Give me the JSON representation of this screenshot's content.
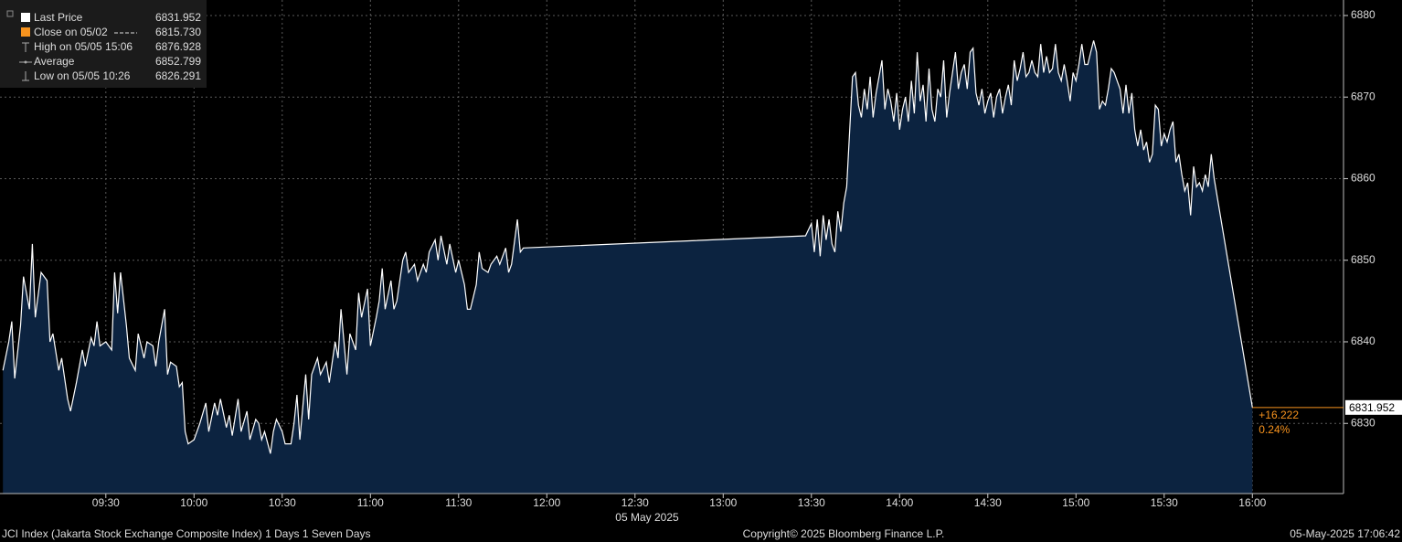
{
  "chart_data": {
    "type": "area",
    "xlabel": "05 May 2025",
    "xlim": [
      "08:54",
      "16:31"
    ],
    "xticks": [
      "09:30",
      "10:00",
      "10:30",
      "11:00",
      "11:30",
      "12:00",
      "12:30",
      "13:00",
      "13:30",
      "14:00",
      "14:30",
      "15:00",
      "15:30",
      "16:00"
    ],
    "ylim": [
      6821.4,
      6881.9
    ],
    "yticks": [
      6830,
      6840,
      6850,
      6860,
      6870,
      6880
    ],
    "grid": true,
    "x": [
      "08:55",
      "08:57",
      "08:58",
      "08:59",
      "09:01",
      "09:02",
      "09:04",
      "09:05",
      "09:06",
      "09:08",
      "09:10",
      "09:11",
      "09:12",
      "09:14",
      "09:15",
      "09:17",
      "09:18",
      "09:20",
      "09:22",
      "09:23",
      "09:25",
      "09:26",
      "09:27",
      "09:28",
      "09:30",
      "09:32",
      "09:33",
      "09:34",
      "09:35",
      "09:37",
      "09:38",
      "09:40",
      "09:41",
      "09:43",
      "09:44",
      "09:46",
      "09:47",
      "09:48",
      "09:50",
      "09:51",
      "09:52",
      "09:54",
      "09:55",
      "09:56",
      "09:57",
      "09:58",
      "10:00",
      "10:02",
      "10:04",
      "10:05",
      "10:07",
      "10:08",
      "10:09",
      "10:11",
      "10:12",
      "10:13",
      "10:15",
      "10:16",
      "10:18",
      "10:19",
      "10:21",
      "10:22",
      "10:23",
      "10:24",
      "10:26",
      "10:27",
      "10:28",
      "10:30",
      "10:31",
      "10:33",
      "10:34",
      "10:35",
      "10:36",
      "10:38",
      "10:39",
      "10:40",
      "10:42",
      "10:43",
      "10:45",
      "10:46",
      "10:48",
      "10:49",
      "10:50",
      "10:52",
      "10:53",
      "10:55",
      "10:56",
      "10:57",
      "10:59",
      "11:00",
      "11:02",
      "11:03",
      "11:04",
      "11:05",
      "11:07",
      "11:08",
      "11:09",
      "11:11",
      "11:12",
      "11:13",
      "11:15",
      "11:16",
      "11:18",
      "11:19",
      "11:20",
      "11:22",
      "11:23",
      "11:24",
      "11:26",
      "11:27",
      "11:29",
      "11:30",
      "11:32",
      "11:33",
      "11:34",
      "11:36",
      "11:37",
      "11:38",
      "11:40",
      "11:41",
      "11:43",
      "11:44",
      "11:46",
      "11:47",
      "11:48",
      "11:50",
      "11:51",
      "11:52",
      "13:28",
      "13:30",
      "13:31",
      "13:32",
      "13:33",
      "13:34",
      "13:35",
      "13:36",
      "13:37",
      "13:38",
      "13:39",
      "13:40",
      "13:41",
      "13:42",
      "13:44",
      "13:45",
      "13:46",
      "13:47",
      "13:48",
      "13:49",
      "13:50",
      "13:51",
      "13:52",
      "13:54",
      "13:55",
      "13:56",
      "13:57",
      "13:58",
      "13:59",
      "14:00",
      "14:01",
      "14:02",
      "14:03",
      "14:04",
      "14:05",
      "14:06",
      "14:07",
      "14:08",
      "14:09",
      "14:10",
      "14:11",
      "14:12",
      "14:13",
      "14:14",
      "14:15",
      "14:16",
      "14:17",
      "14:18",
      "14:19",
      "14:20",
      "14:21",
      "14:22",
      "14:23",
      "14:24",
      "14:25",
      "14:26",
      "14:27",
      "14:28",
      "14:29",
      "14:30",
      "14:31",
      "14:32",
      "14:33",
      "14:34",
      "14:35",
      "14:36",
      "14:37",
      "14:38",
      "14:39",
      "14:40",
      "14:41",
      "14:42",
      "14:43",
      "14:44",
      "14:45",
      "14:46",
      "14:47",
      "14:48",
      "14:49",
      "14:50",
      "14:51",
      "14:52",
      "14:53",
      "14:54",
      "14:55",
      "14:56",
      "14:57",
      "14:58",
      "14:59",
      "15:00",
      "15:01",
      "15:02",
      "15:03",
      "15:04",
      "15:05",
      "15:06",
      "15:07",
      "15:08",
      "15:09",
      "15:10",
      "15:11",
      "15:12",
      "15:13",
      "15:14",
      "15:15",
      "15:16",
      "15:17",
      "15:18",
      "15:19",
      "15:20",
      "15:21",
      "15:22",
      "15:23",
      "15:24",
      "15:25",
      "15:26",
      "15:27",
      "15:28",
      "15:29",
      "15:30",
      "15:31",
      "15:32",
      "15:33",
      "15:34",
      "15:35",
      "15:36",
      "15:37",
      "15:38",
      "15:39",
      "15:40",
      "15:41",
      "15:42",
      "15:43",
      "15:44",
      "15:45",
      "15:46",
      "15:47",
      "16:00"
    ],
    "series": [
      {
        "name": "Last Price",
        "color": "#ffffff",
        "fill": "#0c2340",
        "values": [
          6836.5,
          6840,
          6842.5,
          6835.5,
          6842,
          6848,
          6844,
          6852,
          6843,
          6848.5,
          6847.5,
          6840,
          6841,
          6836.5,
          6838,
          6833,
          6831.5,
          6835,
          6839,
          6837,
          6840.5,
          6839.5,
          6842.5,
          6839.5,
          6840,
          6839,
          6848.5,
          6843.5,
          6848.5,
          6842,
          6838,
          6836.5,
          6841,
          6838,
          6840,
          6839.5,
          6837,
          6840,
          6844,
          6836,
          6837.5,
          6837,
          6834.5,
          6835,
          6829,
          6827.5,
          6828,
          6830,
          6832.5,
          6829,
          6832.5,
          6831,
          6833,
          6829.5,
          6831,
          6828.5,
          6833,
          6829,
          6831.5,
          6828,
          6830.5,
          6830,
          6828,
          6829,
          6826.3,
          6829,
          6830.5,
          6829,
          6827.5,
          6827.5,
          6830,
          6833.5,
          6828,
          6836,
          6830.5,
          6836,
          6838,
          6836,
          6837.5,
          6835,
          6840,
          6838,
          6844,
          6836,
          6841,
          6839,
          6846,
          6843,
          6846.5,
          6839.5,
          6843,
          6845,
          6849,
          6844,
          6847.5,
          6844,
          6845,
          6850,
          6851,
          6848.5,
          6849.5,
          6847.5,
          6849.5,
          6848.5,
          6851,
          6852.5,
          6850,
          6853,
          6849.5,
          6852,
          6848.5,
          6850,
          6847,
          6844,
          6844,
          6847,
          6851,
          6849,
          6848.5,
          6849.5,
          6850.5,
          6849.5,
          6851.5,
          6848.5,
          6849.5,
          6855,
          6851,
          6851.5,
          6853,
          6854.5,
          6851,
          6855,
          6850.5,
          6855.5,
          6852.5,
          6855,
          6852,
          6851,
          6856,
          6853.5,
          6857,
          6859,
          6872.5,
          6873,
          6869,
          6867.5,
          6871,
          6868.5,
          6872.5,
          6867.5,
          6870.5,
          6874.5,
          6868.5,
          6871,
          6869.5,
          6867,
          6870.5,
          6866,
          6868.5,
          6870,
          6867,
          6872,
          6868,
          6875.5,
          6869.5,
          6871.5,
          6867,
          6873.5,
          6868.5,
          6867,
          6871,
          6870,
          6874.5,
          6867.5,
          6870.5,
          6873,
          6875.5,
          6871,
          6873,
          6874,
          6871,
          6875.5,
          6876,
          6870.5,
          6869,
          6871,
          6868,
          6869.5,
          6870.5,
          6867.5,
          6870,
          6871,
          6868,
          6870,
          6871.5,
          6869,
          6874.5,
          6872,
          6873.5,
          6875.5,
          6872.5,
          6873,
          6874.5,
          6873,
          6872.5,
          6876.5,
          6873,
          6875,
          6873,
          6873.5,
          6876.5,
          6873,
          6872,
          6874,
          6872,
          6869.5,
          6873,
          6872,
          6874,
          6876.5,
          6874,
          6874,
          6875.5,
          6876.928,
          6875.5,
          6868.5,
          6869.5,
          6869,
          6871,
          6873.5,
          6873,
          6872,
          6871,
          6868,
          6871.5,
          6868,
          6870.5,
          6866,
          6864,
          6866,
          6863.5,
          6864.5,
          6862,
          6863,
          6869,
          6868.5,
          6864,
          6865.5,
          6864.5,
          6866,
          6867,
          6862,
          6863,
          6860.5,
          6858.5,
          6859.5,
          6855.5,
          6861.5,
          6859,
          6859.5,
          6858.5,
          6860.5,
          6859,
          6863,
          6860,
          6831.952
        ]
      }
    ],
    "legend": [
      {
        "label": "Close on 05/02",
        "value": 6815.73,
        "value_label": "6815.730"
      },
      {
        "label": "High on 05/05 15:06",
        "value": 6876.928
      },
      {
        "label": "Average",
        "value": 6852.799
      },
      {
        "label": "Low on 05/05 10:26",
        "value": 6826.291
      }
    ],
    "change": 16.222,
    "change_label": "+16.222",
    "change_pct": 0.24,
    "change_pct_label": "0.24%",
    "marker_color": "#f7931e"
  },
  "footer": {
    "left": "JCI Index (Jakarta Stock Exchange Composite Index) 1 Days 1 Seven Days",
    "center": "Copyright© 2025 Bloomberg Finance L.P.",
    "right": "05-May-2025 17:06:42"
  }
}
